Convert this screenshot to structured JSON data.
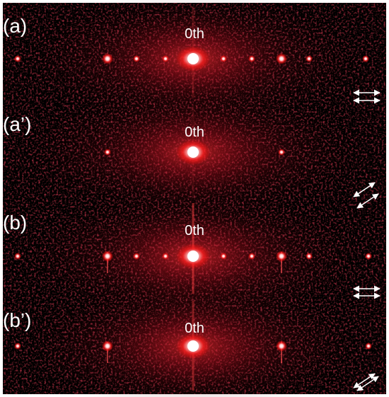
{
  "panels": [
    {
      "label": "(a)",
      "order_label": "0th"
    },
    {
      "label": "(a’)",
      "order_label": "0th"
    },
    {
      "label": "(b)",
      "order_label": "0th"
    },
    {
      "label": "(b’)",
      "order_label": "0th"
    }
  ]
}
